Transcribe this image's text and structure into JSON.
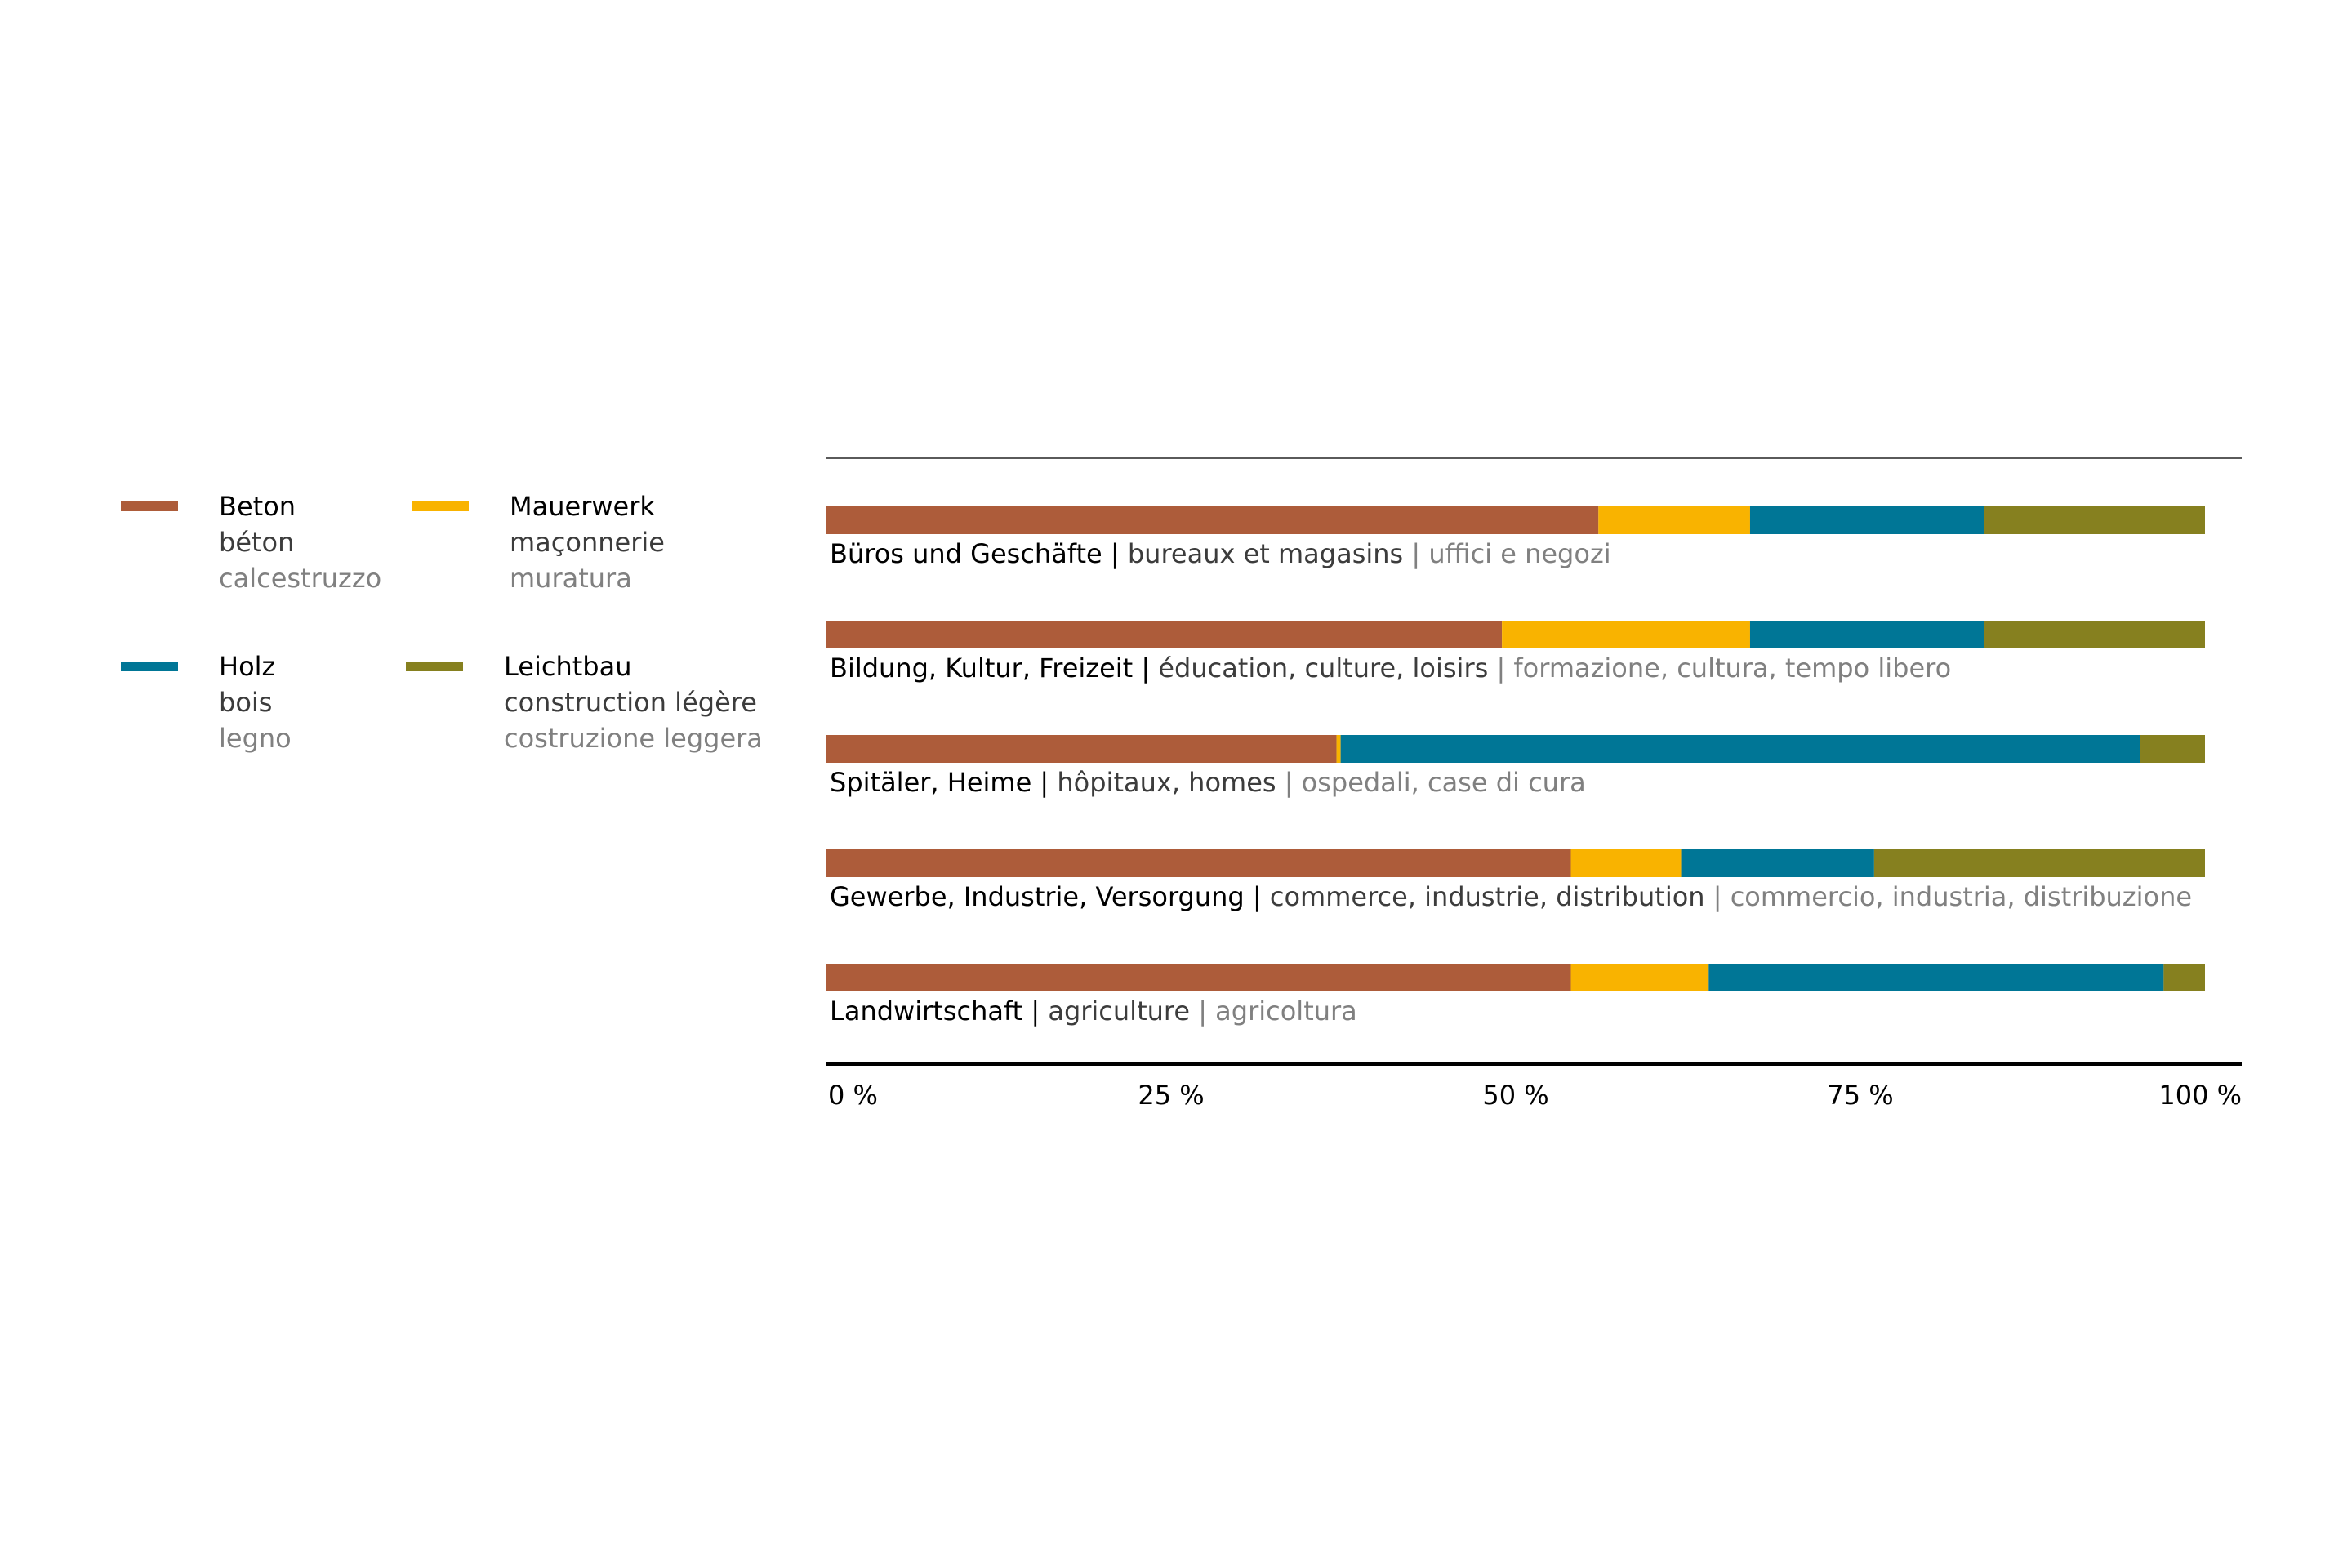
{
  "chart_data": {
    "type": "bar",
    "orientation": "horizontal",
    "stacked": true,
    "normalized": true,
    "categories": [
      {
        "de": "Büros und Geschäfte",
        "fr": "bureaux et magasins",
        "it": "uffici e negozi"
      },
      {
        "de": "Bildung, Kultur, Freizeit",
        "fr": "éducation, culture, loisirs",
        "it": "formazione, cultura, tempo libero"
      },
      {
        "de": "Spitäler, Heime",
        "fr": "hôpitaux, homes",
        "it": "ospedali, case di cura"
      },
      {
        "de": "Gewerbe, Industrie, Versorgung",
        "fr": "commerce, industrie, distribution",
        "it": "commercio, industria, distribuzione"
      },
      {
        "de": "Landwirtschaft",
        "fr": "agriculture",
        "it": "agricoltura"
      }
    ],
    "series": [
      {
        "name": {
          "de": "Beton",
          "fr": "béton",
          "it": "calcestruzzo"
        },
        "color": "#ad5c3a",
        "values": [
          56,
          49,
          37,
          54,
          54
        ]
      },
      {
        "name": {
          "de": "Mauerwerk",
          "fr": "maçonnerie",
          "it": "muratura"
        },
        "color": "#f9b300",
        "values": [
          11,
          18,
          0.3,
          8,
          10
        ]
      },
      {
        "name": {
          "de": "Holz",
          "fr": "bois",
          "it": "legno"
        },
        "color": "#007696",
        "values": [
          17,
          17,
          58,
          14,
          33
        ]
      },
      {
        "name": {
          "de": "Leichtbau",
          "fr": "construction légère",
          "it": "costruzione leggera"
        },
        "color": "#86801f",
        "values": [
          16,
          16,
          4.7,
          24,
          3
        ]
      }
    ],
    "xlim": [
      0,
      100
    ],
    "x_ticks": [
      "0 %",
      "25 %",
      "50 %",
      "75 %",
      "100 %"
    ],
    "legend_position": "left",
    "label_separator": "|"
  },
  "colors": {
    "de_text": "#000000",
    "fr_text": "#3c3c3c",
    "it_text": "#808080",
    "axis": "#000000",
    "top_rule": "#5a5a5a"
  }
}
